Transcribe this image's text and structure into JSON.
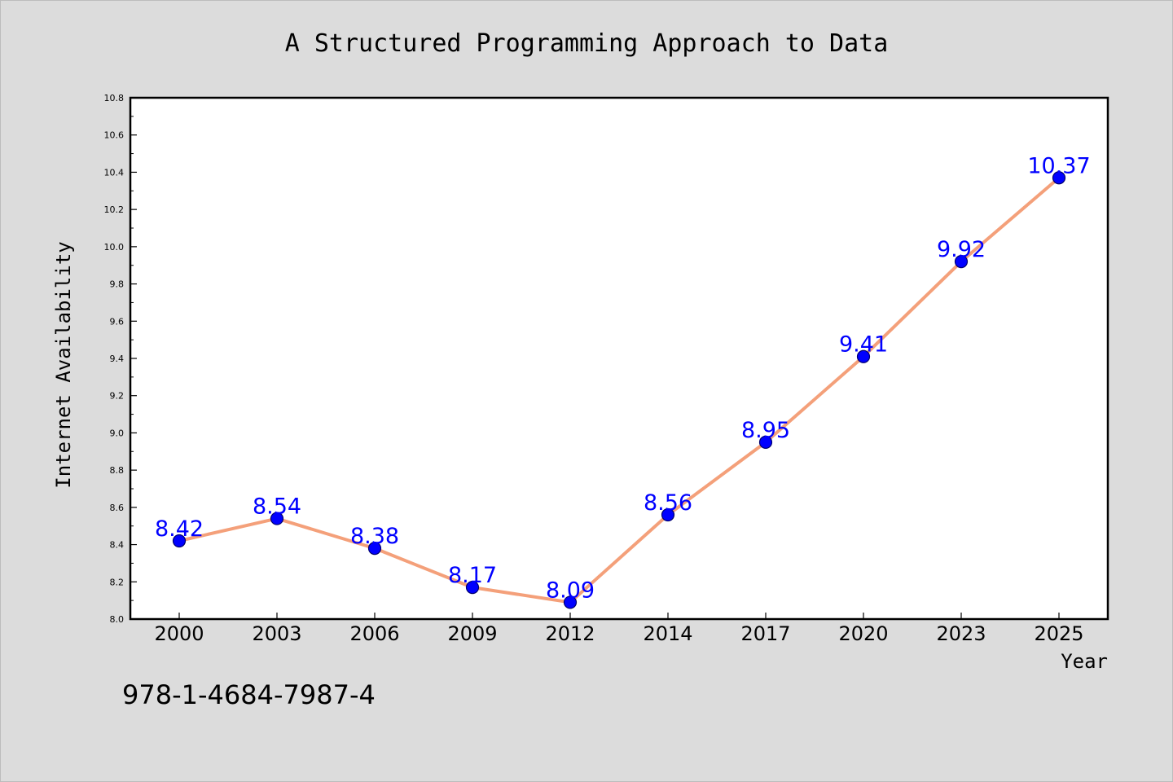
{
  "chart_data": {
    "type": "line",
    "title": "A Structured Programming Approach to Data",
    "xlabel": "Year",
    "ylabel": "Internet Availability",
    "categories": [
      "2000",
      "2003",
      "2006",
      "2009",
      "2012",
      "2014",
      "2017",
      "2020",
      "2023",
      "2025"
    ],
    "series": [
      {
        "values": [
          8.42,
          8.54,
          8.38,
          8.17,
          8.09,
          8.56,
          8.95,
          9.41,
          9.92,
          10.37
        ]
      }
    ],
    "data_labels": [
      "8.42",
      "8.54",
      "8.38",
      "8.17",
      "8.09",
      "8.56",
      "8.95",
      "9.41",
      "9.92",
      "10.37"
    ],
    "ylim": [
      8.0,
      10.8
    ],
    "yticks": [
      "8.0",
      "8.2",
      "8.4",
      "8.6",
      "8.8",
      "9.0",
      "9.2",
      "9.4",
      "9.6",
      "9.8",
      "10.0",
      "10.2",
      "10.4",
      "10.6",
      "10.8"
    ],
    "grid": false,
    "colors": {
      "line": "#f4a07a",
      "marker": "#0000ff",
      "label": "#0000ff",
      "background": "#dcdcdc",
      "plot_background": "#ffffff"
    }
  },
  "footer_text": "978-1-4684-7987-4"
}
